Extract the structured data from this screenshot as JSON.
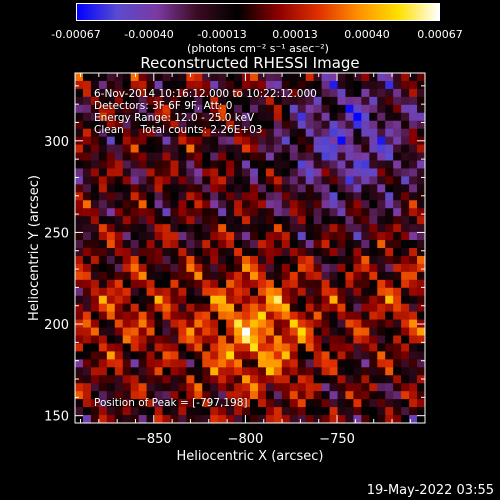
{
  "colorbar": {
    "tick_labels": [
      "-0.00067",
      "-0.00040",
      "-0.00013",
      "0.00013",
      "0.00040",
      "0.00067"
    ],
    "unit": "(photons cm⁻² s⁻¹ asec⁻²)"
  },
  "chart_data": {
    "type": "heatmap",
    "title": "Reconstructed RHESSI Image",
    "xlabel": "Heliocentric X (arcsec)",
    "ylabel": "Heliocentric Y (arcsec)",
    "xlim": [
      -893,
      -702
    ],
    "ylim": [
      146,
      337
    ],
    "x_ticks": [
      -850,
      -800,
      -750
    ],
    "x_tick_labels": [
      "−850",
      "−800",
      "−750"
    ],
    "y_ticks": [
      150,
      200,
      250,
      300
    ],
    "y_tick_labels": [
      "150",
      "200",
      "250",
      "300"
    ],
    "value_range": [
      -0.00067,
      0.00067
    ],
    "colormap": [
      "#0000ff",
      "#5a4bd0",
      "#7a3aa0",
      "#3a0a20",
      "#000000",
      "#8b0000",
      "#e03000",
      "#ff9000",
      "#ffe000",
      "#ffffff"
    ]
  },
  "info": {
    "line1": "6-Nov-2014 10:16:12.000 to 10:22:12.000",
    "line2": "Detectors: 3F 6F 9F, Att: 0",
    "line3": "Energy Range: 12.0 - 25.0 keV",
    "line4": "Clean     Total counts: 2.26E+03",
    "peak": "Position of Peak = [-797,198]"
  },
  "timestamp": "19-May-2022 03:55"
}
